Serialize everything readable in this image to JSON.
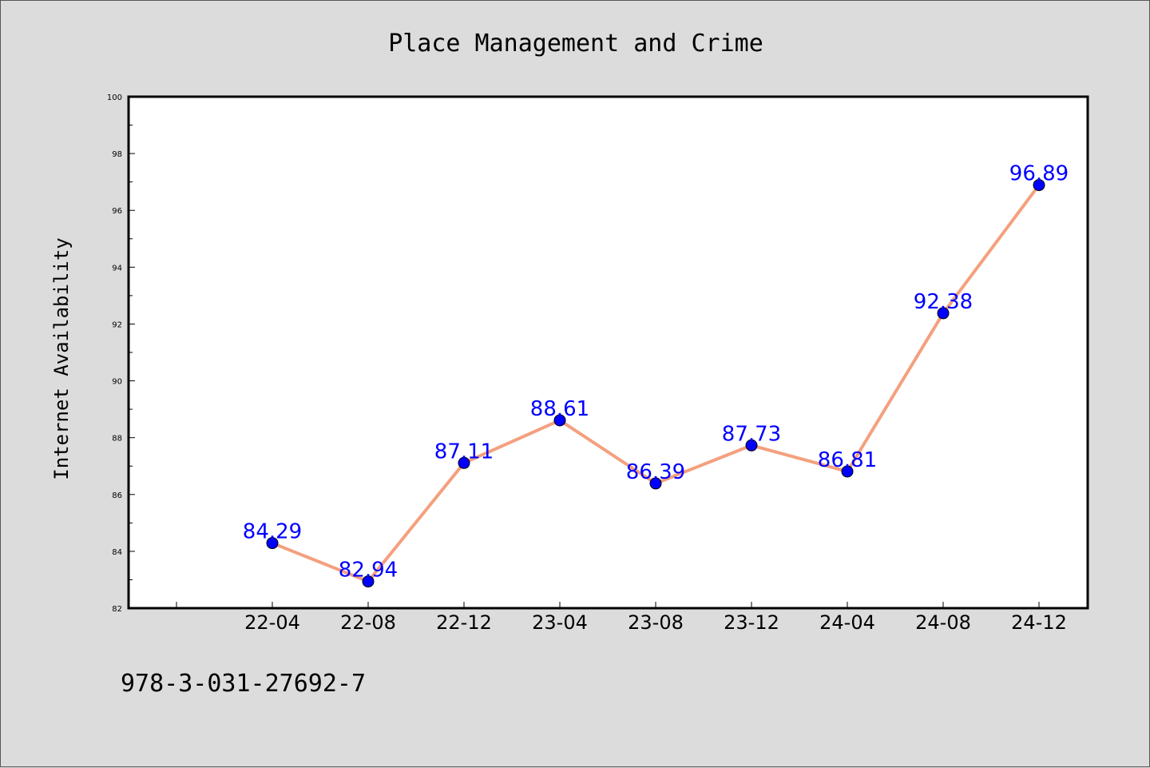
{
  "chart_data": {
    "type": "line",
    "title": "Place Management and Crime",
    "xlabel": "",
    "ylabel": "Internet Availability",
    "categories": [
      "22-04",
      "22-08",
      "22-12",
      "23-04",
      "23-08",
      "23-12",
      "24-04",
      "24-08",
      "24-12"
    ],
    "series": [
      {
        "values": [
          84.29,
          82.94,
          87.11,
          88.61,
          86.39,
          87.73,
          86.81,
          92.38,
          96.89
        ]
      }
    ],
    "data_labels": [
      "84.29",
      "82.94",
      "87.11",
      "88.61",
      "86.39",
      "87.73",
      "86.81",
      "92.38",
      "96.89"
    ],
    "ylim": [
      82,
      100
    ],
    "yticks": [
      "82",
      "84",
      "86",
      "88",
      "90",
      "92",
      "94",
      "96",
      "98",
      "100"
    ],
    "grid": false,
    "line_color": "#f4a07e",
    "marker_color": "#0000ff",
    "label_color": "#0000ff",
    "background_color": "#dcdcdc",
    "plot_background_color": "#ffffff"
  },
  "footer": {
    "text": "978-3-031-27692-7"
  }
}
